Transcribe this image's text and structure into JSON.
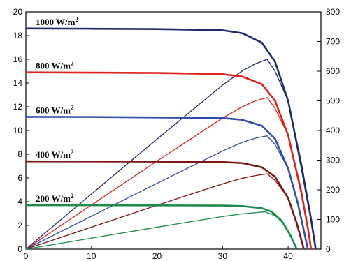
{
  "chart_data": {
    "type": "line",
    "title": "",
    "xlabel": "",
    "ylabel": "",
    "y2label": "",
    "xlim": [
      0,
      45
    ],
    "ylim": [
      0,
      20
    ],
    "y2lim": [
      0,
      800
    ],
    "x_ticks": [
      0,
      10,
      20,
      30,
      40
    ],
    "y_ticks": [
      0,
      2,
      4,
      6,
      8,
      10,
      12,
      14,
      16,
      18,
      20
    ],
    "y2_ticks": [
      0,
      100,
      200,
      300,
      400,
      500,
      600,
      700,
      800
    ],
    "grid": false,
    "legend": "none",
    "curves": [
      {
        "label": "1000 W/m",
        "label_sup": "2",
        "color": "#1f2a6b",
        "isc": 18.6,
        "voc": 44.2,
        "current": {
          "x": [
            0,
            10,
            20,
            30,
            33,
            36,
            38,
            40,
            42,
            43.5,
            44.2
          ],
          "y": [
            18.6,
            18.58,
            18.55,
            18.45,
            18.2,
            17.4,
            15.8,
            12.5,
            7.0,
            2.5,
            0
          ]
        },
        "power": {
          "x": [
            0,
            10,
            20,
            30,
            33,
            35,
            36.8,
            38,
            40,
            42,
            43.5,
            44.2
          ],
          "y": [
            0,
            186,
            371,
            553,
            601,
            625,
            640,
            600,
            500,
            294,
            109,
            0
          ]
        }
      },
      {
        "label": "800 W/m",
        "label_sup": "2",
        "color": "#e0231c",
        "isc": 14.9,
        "voc": 43.5,
        "current": {
          "x": [
            0,
            10,
            20,
            30,
            33,
            36,
            38,
            40,
            42,
            43,
            43.5
          ],
          "y": [
            14.9,
            14.88,
            14.85,
            14.75,
            14.55,
            13.9,
            12.5,
            9.6,
            4.8,
            1.8,
            0
          ]
        },
        "power": {
          "x": [
            0,
            10,
            20,
            30,
            33,
            35,
            36.8,
            38,
            40,
            42,
            43,
            43.5
          ],
          "y": [
            0,
            149,
            297,
            442,
            480,
            500,
            511,
            475,
            384,
            202,
            77,
            0
          ]
        }
      },
      {
        "label": "600 W/m",
        "label_sup": "2",
        "color": "#2e4fa8",
        "isc": 11.15,
        "voc": 43.0,
        "current": {
          "x": [
            0,
            10,
            20,
            30,
            33,
            36,
            38,
            40,
            41.5,
            42.5,
            43.0
          ],
          "y": [
            11.15,
            11.14,
            11.1,
            11.05,
            10.9,
            10.4,
            9.3,
            6.8,
            3.8,
            1.3,
            0
          ]
        },
        "power": {
          "x": [
            0,
            10,
            20,
            30,
            33,
            35,
            36.8,
            38,
            40,
            41.5,
            42.5,
            43.0
          ],
          "y": [
            0,
            111,
            222,
            331,
            360,
            374,
            382,
            353,
            272,
            158,
            55,
            0
          ]
        }
      },
      {
        "label": "400 W/m",
        "label_sup": "2",
        "color": "#7a1616",
        "isc": 7.4,
        "voc": 42.4,
        "current": {
          "x": [
            0,
            10,
            20,
            30,
            33,
            36,
            38,
            40,
            41.3,
            42.0,
            42.4
          ],
          "y": [
            7.4,
            7.39,
            7.38,
            7.34,
            7.25,
            6.9,
            6.1,
            4.3,
            2.2,
            0.8,
            0
          ]
        },
        "power": {
          "x": [
            0,
            10,
            20,
            30,
            33,
            35,
            36.8,
            38,
            40,
            41.3,
            42.0,
            42.4
          ],
          "y": [
            0,
            74,
            148,
            220,
            239,
            248,
            254,
            232,
            172,
            91,
            34,
            0
          ]
        }
      },
      {
        "label": "200 W/m",
        "label_sup": "2",
        "color": "#1b8a4c",
        "isc": 3.7,
        "voc": 41.3,
        "current": {
          "x": [
            0,
            10,
            20,
            30,
            33,
            36,
            37.5,
            39,
            40.3,
            41.0,
            41.3
          ],
          "y": [
            3.7,
            3.7,
            3.69,
            3.67,
            3.63,
            3.45,
            3.15,
            2.4,
            1.2,
            0.4,
            0
          ]
        },
        "power": {
          "x": [
            0,
            10,
            20,
            30,
            33,
            35,
            36.5,
            38,
            39.5,
            40.5,
            41.3
          ],
          "y": [
            0,
            37,
            74,
            110,
            119,
            123,
            126,
            113,
            82,
            42,
            0
          ]
        }
      }
    ]
  }
}
